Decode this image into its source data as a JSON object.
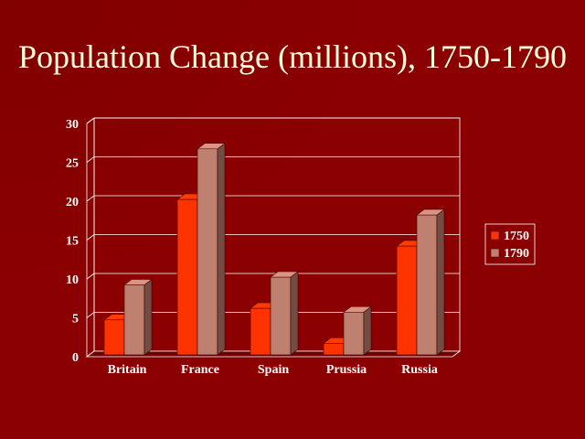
{
  "chart_data": {
    "type": "bar",
    "title": "Population Change (millions), 1750-1790",
    "categories": [
      "Britain",
      "France",
      "Spain",
      "Prussia",
      "Russia"
    ],
    "series": [
      {
        "name": "1750",
        "values": [
          4.5,
          20,
          6,
          1.5,
          14
        ]
      },
      {
        "name": "1790",
        "values": [
          9,
          26.5,
          10,
          5.5,
          18
        ]
      }
    ],
    "ylim": [
      0,
      30
    ],
    "yticks": [
      "0",
      "5",
      "10",
      "15",
      "20",
      "25",
      "30"
    ],
    "grid": true,
    "legend": "right",
    "style": "3d-clustered-column"
  },
  "colors": {
    "background": "#8b0000",
    "title": "#ffffe0",
    "series_1750": "#ff3300",
    "series_1790": "#c08070",
    "grid": "#ffffff",
    "axis_text": "#ffffff"
  }
}
